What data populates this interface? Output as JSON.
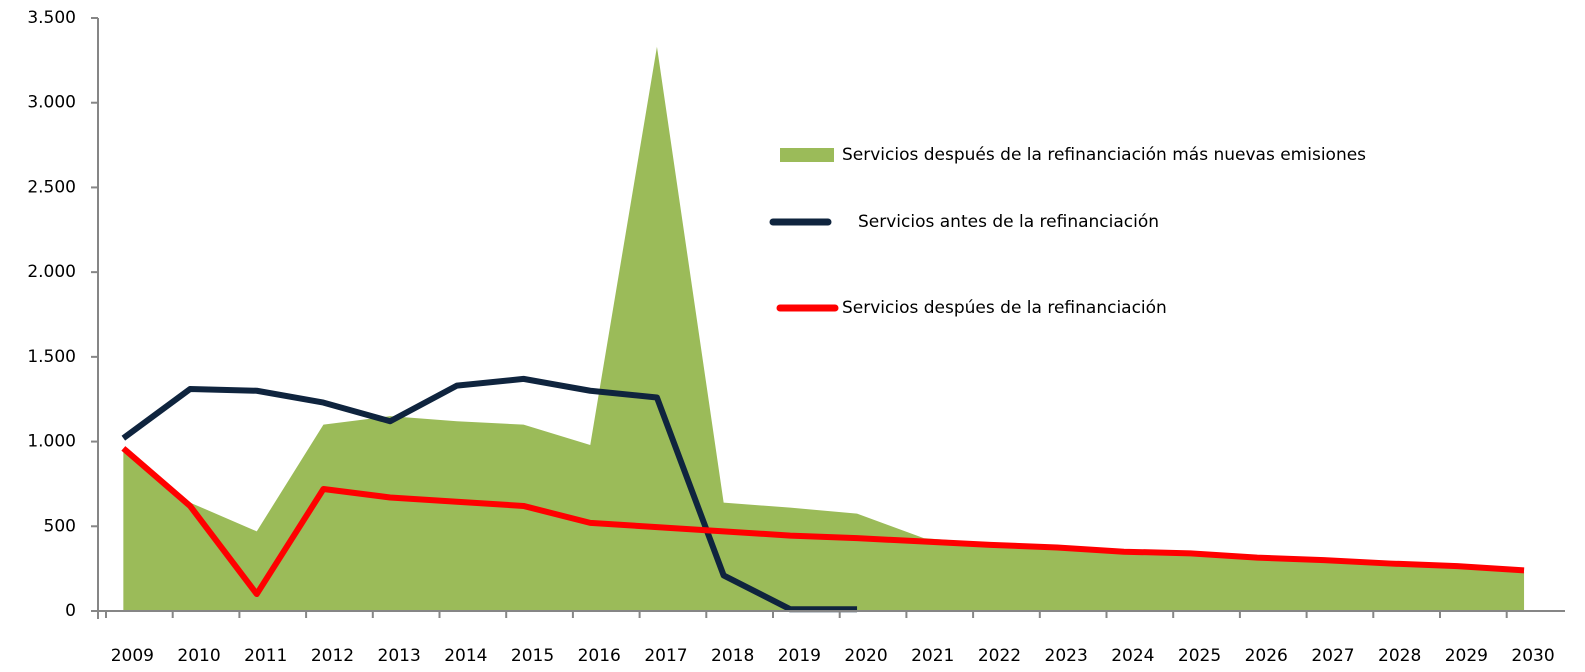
{
  "chart_data": {
    "type": "line",
    "categories": [
      "2009",
      "2010",
      "2011",
      "2012",
      "2013",
      "2014",
      "2015",
      "2016",
      "2017",
      "2018",
      "2019",
      "2020",
      "2021",
      "2022",
      "2023",
      "2024",
      "2025",
      "2026",
      "2027",
      "2028",
      "2029",
      "2030"
    ],
    "ylim": [
      0,
      3500
    ],
    "yticks": [
      0,
      500,
      {
        "value": 1000,
        "label": "1.000"
      },
      {
        "value": 1500,
        "label": "1.500"
      },
      {
        "value": 2000,
        "label": "2.000"
      },
      {
        "value": 2500,
        "label": "2.500"
      },
      {
        "value": 3000,
        "label": "3.000"
      },
      {
        "value": 3500,
        "label": "3.500"
      }
    ],
    "grid": false,
    "series": [
      {
        "name": "Servicios después de la refinanciación más nuevas emisiones",
        "color": "#9bbb59",
        "style": "area",
        "values": [
          950,
          640,
          470,
          1100,
          1150,
          1120,
          1100,
          980,
          3330,
          640,
          610,
          575,
          430,
          400,
          380,
          350,
          340,
          310,
          300,
          270,
          260,
          230
        ]
      },
      {
        "name": "Servicios antes de la refinanciación",
        "color": "#0f243e",
        "style": "line",
        "values": [
          1020,
          1310,
          1300,
          1230,
          1120,
          1330,
          1370,
          1300,
          1260,
          210,
          10,
          10,
          null,
          null,
          null,
          null,
          null,
          null,
          null,
          null,
          null,
          null
        ]
      },
      {
        "name": "Servicios despúes de la refinanciación",
        "color": "#ff0000",
        "style": "line",
        "values": [
          960,
          620,
          100,
          720,
          670,
          645,
          620,
          520,
          495,
          470,
          445,
          430,
          410,
          390,
          375,
          350,
          340,
          315,
          300,
          280,
          265,
          240
        ]
      }
    ]
  }
}
